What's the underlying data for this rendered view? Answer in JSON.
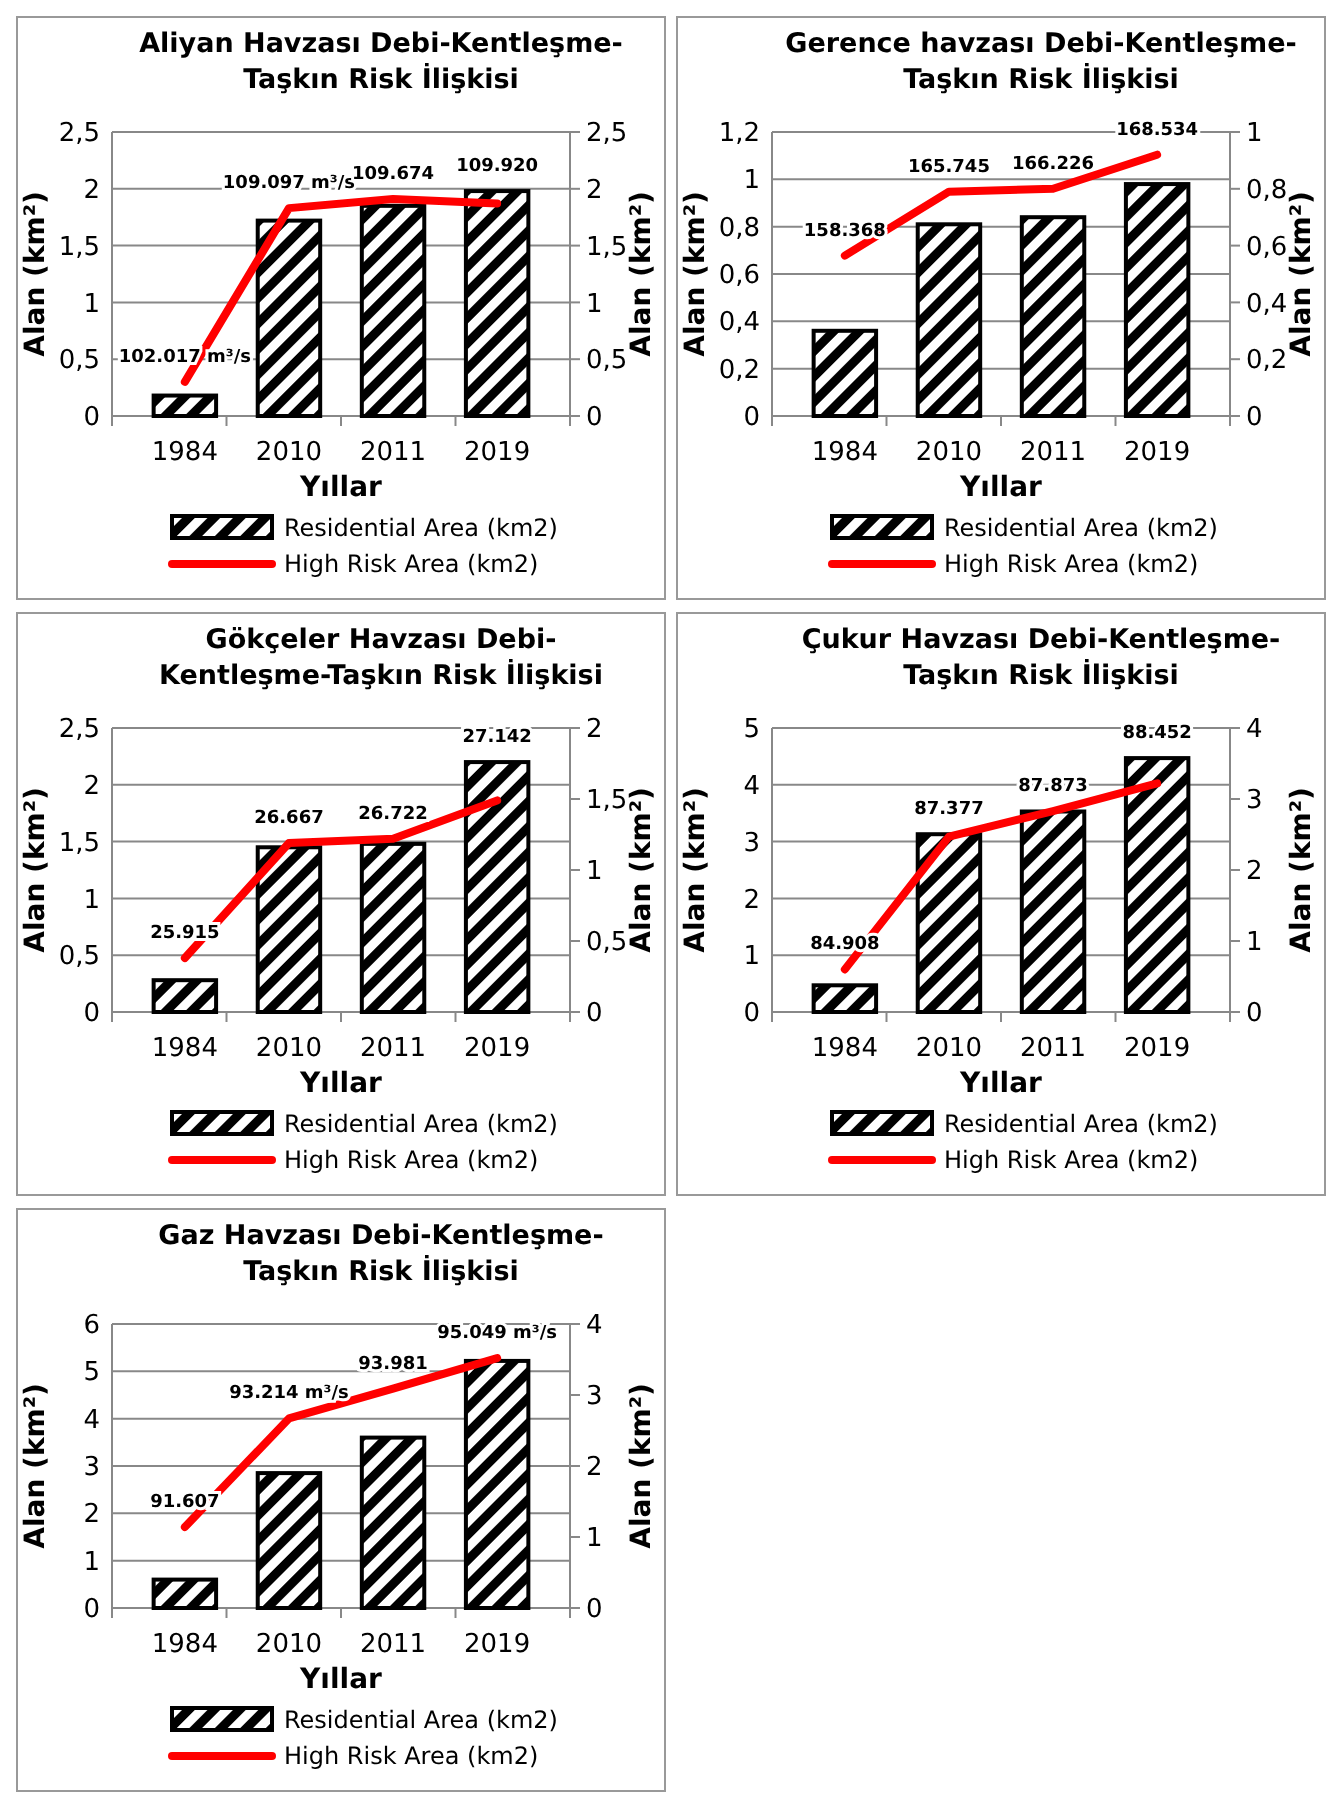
{
  "chart_data": [
    {
      "type": "bar",
      "title": "Aliyan Havzası Debi-Kentleşme-Taşkın Risk İlişkisi",
      "xlabel": "Yıllar",
      "ylabel": "Alan (km²)",
      "y2label": "Alan (km²)",
      "categories": [
        "1984",
        "2010",
        "2011",
        "2019"
      ],
      "series": [
        {
          "name": "Residential Area (km2)",
          "type": "bar",
          "color": "#000000",
          "values": [
            0.18,
            1.72,
            1.85,
            1.98
          ]
        },
        {
          "name": "High Risk Area (km2)",
          "type": "line",
          "axis": "y2",
          "color": "#ff0000",
          "values": [
            0.3,
            1.83,
            1.91,
            1.87
          ]
        }
      ],
      "ylim": [
        0,
        2.5
      ],
      "yticks": [
        0,
        {
          "value": 0.5,
          "label": "0,5"
        },
        1,
        {
          "value": 1.5,
          "label": "1,5"
        },
        2,
        {
          "value": 2.5,
          "label": "2,5"
        }
      ],
      "y2lim": [
        0,
        2.5
      ],
      "y2ticks": [
        0,
        {
          "value": 0.5,
          "label": "0,5"
        },
        1,
        {
          "value": 1.5,
          "label": "1,5"
        },
        2,
        {
          "value": 2.5,
          "label": "2,5"
        }
      ],
      "annotations": [
        "102.017 m³/s",
        "109.097 m³/s",
        "109.674",
        "109.920"
      ],
      "grid": "y",
      "legend": "bottom"
    },
    {
      "type": "bar",
      "title": "Gerence havzası Debi-Kentleşme-Taşkın Risk İlişkisi",
      "xlabel": "Yıllar",
      "ylabel": "Alan (km²)",
      "y2label": "Alan (km²)",
      "categories": [
        "1984",
        "2010",
        "2011",
        "2019"
      ],
      "series": [
        {
          "name": "Residential Area (km2)",
          "type": "bar",
          "color": "#000000",
          "values": [
            0.36,
            0.81,
            0.84,
            0.98
          ]
        },
        {
          "name": "High Risk Area (km2)",
          "type": "line",
          "axis": "y2",
          "color": "#ff0000",
          "values": [
            0.565,
            0.79,
            0.8,
            0.92
          ]
        }
      ],
      "ylim": [
        0,
        1.2
      ],
      "yticks": [
        0,
        {
          "value": 0.2,
          "label": "0,2"
        },
        {
          "value": 0.4,
          "label": "0,4"
        },
        {
          "value": 0.6,
          "label": "0,6"
        },
        {
          "value": 0.8,
          "label": "0,8"
        },
        1,
        {
          "value": 1.2,
          "label": "1,2"
        }
      ],
      "y2lim": [
        0,
        1
      ],
      "y2ticks": [
        0,
        {
          "value": 0.2,
          "label": "0,2"
        },
        {
          "value": 0.4,
          "label": "0,4"
        },
        {
          "value": 0.6,
          "label": "0,6"
        },
        {
          "value": 0.8,
          "label": "0,8"
        },
        1
      ],
      "annotations": [
        "158.368",
        "165.745",
        "166.226",
        "168.534"
      ],
      "grid": "y",
      "legend": "bottom"
    },
    {
      "type": "bar",
      "title": "Gökçeler Havzası Debi-Kentleşme-Taşkın Risk İlişkisi",
      "xlabel": "Yıllar",
      "ylabel": "Alan (km²)",
      "y2label": "Alan (km²)",
      "categories": [
        "1984",
        "2010",
        "2011",
        "2019"
      ],
      "series": [
        {
          "name": "Residential Area (km2)",
          "type": "bar",
          "color": "#000000",
          "values": [
            0.28,
            1.45,
            1.48,
            2.2
          ]
        },
        {
          "name": "High Risk Area (km2)",
          "type": "line",
          "axis": "y2",
          "color": "#ff0000",
          "values": [
            0.38,
            1.19,
            1.22,
            1.49
          ]
        }
      ],
      "ylim": [
        0,
        2.5
      ],
      "yticks": [
        0,
        {
          "value": 0.5,
          "label": "0,5"
        },
        1,
        {
          "value": 1.5,
          "label": "1,5"
        },
        2,
        {
          "value": 2.5,
          "label": "2,5"
        }
      ],
      "y2lim": [
        0,
        2
      ],
      "y2ticks": [
        0,
        {
          "value": 0.5,
          "label": "0,5"
        },
        1,
        {
          "value": 1.5,
          "label": "1,5"
        },
        2
      ],
      "annotations": [
        "25.915",
        "26.667",
        "26.722",
        "27.142"
      ],
      "grid": "y",
      "legend": "bottom"
    },
    {
      "type": "bar",
      "title": "Çukur Havzası Debi-Kentleşme-Taşkın Risk İlişkisi",
      "xlabel": "Yıllar",
      "ylabel": "Alan (km²)",
      "y2label": "Alan (km²)",
      "categories": [
        "1984",
        "2010",
        "2011",
        "2019"
      ],
      "series": [
        {
          "name": "Residential Area (km2)",
          "type": "bar",
          "color": "#000000",
          "values": [
            0.47,
            3.13,
            3.53,
            4.47
          ]
        },
        {
          "name": "High Risk Area (km2)",
          "type": "line",
          "axis": "y2",
          "color": "#ff0000",
          "values": [
            0.6,
            2.47,
            2.83,
            3.22
          ]
        }
      ],
      "ylim": [
        0,
        5
      ],
      "yticks": [
        0,
        1,
        2,
        3,
        4,
        5
      ],
      "y2lim": [
        0,
        4
      ],
      "y2ticks": [
        0,
        1,
        2,
        3,
        4
      ],
      "annotations": [
        "84.908",
        "87.377",
        "87.873",
        "88.452"
      ],
      "grid": "y",
      "legend": "bottom"
    },
    {
      "type": "bar",
      "title": "Gaz Havzası Debi-Kentleşme-Taşkın Risk İlişkisi",
      "xlabel": "Yıllar",
      "ylabel": "Alan (km²)",
      "y2label": "Alan (km²)",
      "categories": [
        "1984",
        "2010",
        "2011",
        "2019"
      ],
      "series": [
        {
          "name": "Residential Area (km2)",
          "type": "bar",
          "color": "#000000",
          "values": [
            0.6,
            2.85,
            3.6,
            5.22
          ]
        },
        {
          "name": "High Risk Area (km2)",
          "type": "line",
          "axis": "y2",
          "color": "#ff0000",
          "values": [
            1.14,
            2.67,
            3.09,
            3.52
          ]
        }
      ],
      "ylim": [
        0,
        6
      ],
      "yticks": [
        0,
        1,
        2,
        3,
        4,
        5,
        6
      ],
      "y2lim": [
        0,
        4
      ],
      "y2ticks": [
        0,
        1,
        2,
        3,
        4
      ],
      "annotations": [
        "91.607",
        "93.214 m³/s",
        "93.981",
        "95.049 m³/s"
      ],
      "grid": "y",
      "legend": "bottom"
    }
  ]
}
